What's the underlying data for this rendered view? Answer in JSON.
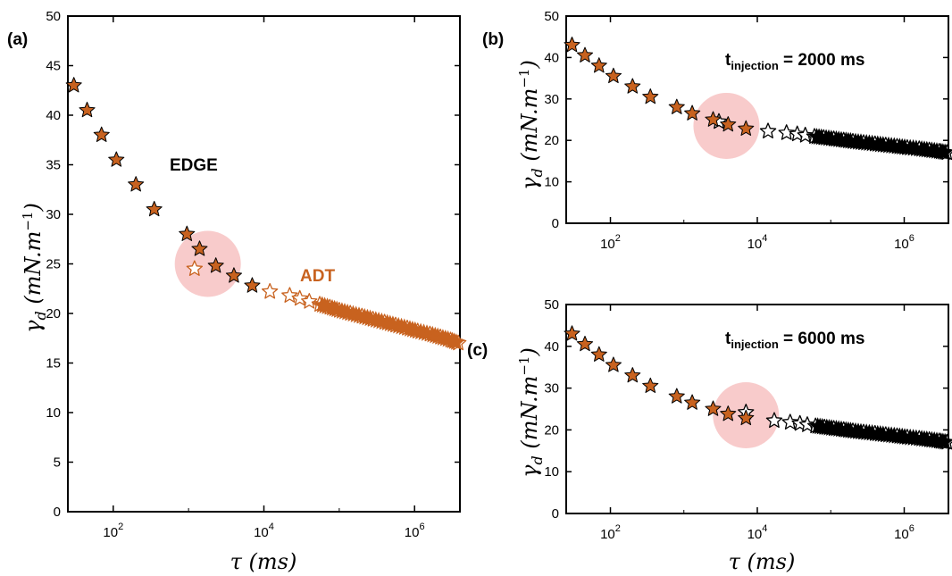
{
  "figure": {
    "panels": [
      {
        "letter": "(a)",
        "annotations": [
          {
            "text": "EDGE",
            "color": "#000000"
          },
          {
            "text": "ADT",
            "color": "#c8621f"
          }
        ]
      },
      {
        "letter": "(b)",
        "annotations": [
          {
            "base": "t",
            "sub": "injection",
            "rest": " = 2000 ms",
            "color": "#000000"
          }
        ]
      },
      {
        "letter": "(c)",
        "annotations": [
          {
            "base": "t",
            "sub": "injection",
            "rest": " = 6000 ms",
            "color": "#000000"
          }
        ]
      }
    ]
  },
  "chart_data": [
    {
      "id": "a",
      "type": "scatter",
      "title": "",
      "xlabel": "τ (ms)",
      "ylabel": "γd (mN.m−1)",
      "x_scale": "log",
      "xlim": [
        25,
        4000000
      ],
      "ylim": [
        0,
        50
      ],
      "x_ticks": [
        100,
        10000,
        1000000
      ],
      "x_tick_labels": [
        "10^2",
        "10^4",
        "10^6"
      ],
      "y_ticks": [
        0,
        5,
        10,
        15,
        20,
        25,
        30,
        35,
        40,
        45,
        50
      ],
      "grid": false,
      "legend": "none",
      "marker": "star",
      "series": [
        {
          "name": "EDGE",
          "fill": "#c8621f",
          "stroke": "#000000",
          "x": [
            30,
            45,
            70,
            110,
            200,
            350,
            950,
            1400,
            2300,
            4000,
            7000
          ],
          "y": [
            43,
            40.5,
            38,
            35.5,
            33,
            30.5,
            28,
            26.5,
            24.8,
            23.8,
            22.8
          ]
        },
        {
          "name": "ADT",
          "fill": "none",
          "stroke": "#c8621f",
          "x": [
            1200,
            12000,
            22000,
            30000,
            40000,
            55000,
            75000,
            100000,
            140000,
            200000,
            280000,
            400000,
            560000,
            800000,
            1100000,
            1600000,
            2200000,
            3000000,
            3800000
          ],
          "y": [
            24.5,
            22.2,
            21.8,
            21.5,
            21.2,
            20.9,
            20.6,
            20.3,
            20.0,
            19.7,
            19.4,
            19.1,
            18.8,
            18.5,
            18.2,
            17.9,
            17.6,
            17.3,
            17.0
          ]
        }
      ],
      "highlight": {
        "x": 1800,
        "y": 25
      }
    },
    {
      "id": "b",
      "type": "scatter",
      "title": "",
      "xlabel": "",
      "ylabel": "γd (mN.m−1)",
      "x_scale": "log",
      "xlim": [
        25,
        4000000
      ],
      "ylim": [
        0,
        50
      ],
      "x_ticks": [
        100,
        10000,
        1000000
      ],
      "x_tick_labels": [
        "10^2",
        "10^4",
        "10^6"
      ],
      "y_ticks": [
        0,
        10,
        20,
        30,
        40,
        50
      ],
      "grid": false,
      "legend": "none",
      "marker": "star",
      "series": [
        {
          "name": "EDGE",
          "fill": "#c8621f",
          "stroke": "#000000",
          "x": [
            30,
            45,
            70,
            110,
            200,
            350,
            800,
            1300,
            2500,
            4000,
            7000
          ],
          "y": [
            43,
            40.5,
            38,
            35.5,
            33,
            30.5,
            28,
            26.5,
            25,
            23.8,
            22.8
          ]
        },
        {
          "name": "ADT",
          "fill": "none",
          "stroke": "#000000",
          "x": [
            3000,
            14000,
            25000,
            35000,
            45000,
            60000,
            80000,
            110000,
            150000,
            200000,
            280000,
            400000,
            560000,
            800000,
            1100000,
            1600000,
            2200000,
            3000000,
            3800000
          ],
          "y": [
            24.5,
            22.2,
            21.8,
            21.5,
            21.2,
            20.9,
            20.6,
            20.3,
            20.0,
            19.7,
            19.4,
            19.1,
            18.8,
            18.5,
            18.2,
            17.9,
            17.6,
            17.3,
            17.0
          ]
        }
      ],
      "highlight": {
        "x": 3800,
        "y": 23.5
      }
    },
    {
      "id": "c",
      "type": "scatter",
      "title": "",
      "xlabel": "τ (ms)",
      "ylabel": "γd (mN.m−1)",
      "x_scale": "log",
      "xlim": [
        25,
        4000000
      ],
      "ylim": [
        0,
        50
      ],
      "x_ticks": [
        100,
        10000,
        1000000
      ],
      "x_tick_labels": [
        "10^2",
        "10^4",
        "10^6"
      ],
      "y_ticks": [
        0,
        10,
        20,
        30,
        40,
        50
      ],
      "grid": false,
      "legend": "none",
      "marker": "star",
      "series": [
        {
          "name": "EDGE",
          "fill": "#c8621f",
          "stroke": "#000000",
          "x": [
            30,
            45,
            70,
            110,
            200,
            350,
            800,
            1300,
            2500,
            4000,
            7000
          ],
          "y": [
            43,
            40.5,
            38,
            35.5,
            33,
            30.5,
            28,
            26.5,
            25,
            23.8,
            22.8
          ]
        },
        {
          "name": "ADT",
          "fill": "none",
          "stroke": "#000000",
          "x": [
            7000,
            17000,
            28000,
            38000,
            48000,
            62000,
            82000,
            110000,
            150000,
            200000,
            280000,
            400000,
            560000,
            800000,
            1100000,
            1600000,
            2200000,
            3000000,
            3800000
          ],
          "y": [
            24.2,
            22.2,
            21.8,
            21.5,
            21.2,
            20.9,
            20.6,
            20.3,
            20.0,
            19.7,
            19.4,
            19.1,
            18.8,
            18.5,
            18.2,
            17.9,
            17.6,
            17.3,
            17.0
          ]
        }
      ],
      "highlight": {
        "x": 7000,
        "y": 23.5
      }
    }
  ],
  "colors": {
    "edge_fill": "#c8621f",
    "adt_orange": "#c8621f",
    "highlight": "#f6b9b9",
    "axis": "#000000"
  }
}
